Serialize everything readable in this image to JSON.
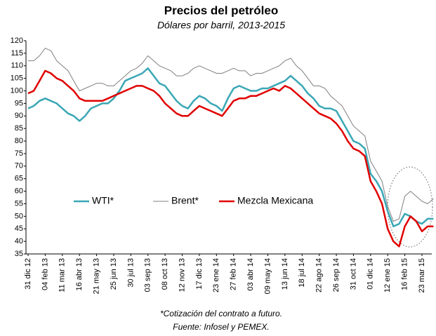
{
  "chart_data": {
    "type": "line",
    "title": "Precios del petróleo",
    "subtitle": "Dólares por barril, 2013-2015",
    "notes": [
      "*Cotización del contrato a futuro.",
      "Fuente: Infosel y PEMEX."
    ],
    "categories": [
      "31 dic 12",
      null,
      null,
      "04 feb 13",
      null,
      null,
      "11 mar 13",
      null,
      null,
      "16 abr 13",
      null,
      null,
      "21 may 13",
      null,
      null,
      "25 jun 13",
      null,
      null,
      "30 jul 13",
      null,
      null,
      "03 sep 13",
      null,
      null,
      "08 oct 13",
      null,
      null,
      "12 nov 13",
      null,
      null,
      "17 dic 13",
      null,
      null,
      "23 ene 14",
      null,
      null,
      "27 feb 14",
      null,
      null,
      "03 abr 14",
      null,
      null,
      "09 may 14",
      null,
      null,
      "13 jun 14",
      null,
      null,
      "18 jul 14",
      null,
      null,
      "22 ago 14",
      null,
      null,
      "26 sep 14",
      null,
      null,
      "31 oct 14",
      null,
      null,
      "01 dic 14",
      null,
      null,
      "12 ene 15",
      null,
      null,
      "16 feb 15",
      null,
      null,
      "23 mar 15",
      null,
      null
    ],
    "series": [
      {
        "name": "WTI*",
        "color": "#3aa7b5",
        "width": 2.5,
        "values": [
          93,
          94,
          96,
          97,
          96,
          95,
          93,
          91,
          90,
          88,
          90,
          93,
          94,
          95,
          95,
          97,
          100,
          104,
          105,
          106,
          107,
          109,
          106,
          103,
          102,
          99,
          96,
          94,
          93,
          96,
          98,
          97,
          95,
          94,
          92,
          97,
          101,
          102,
          101,
          100,
          100,
          101,
          101,
          102,
          103,
          104,
          106,
          104,
          102,
          99,
          97,
          94,
          93,
          93,
          92,
          88,
          84,
          80,
          79,
          77,
          67,
          64,
          60,
          52,
          46,
          47,
          51,
          50,
          48,
          47,
          49,
          49
        ]
      },
      {
        "name": "Brent*",
        "color": "#7f7f7f",
        "width": 1,
        "values": [
          112,
          112,
          114,
          117,
          116,
          112,
          110,
          108,
          104,
          100,
          101,
          102,
          103,
          103,
          102,
          102,
          104,
          106,
          108,
          109,
          111,
          114,
          112,
          110,
          109,
          108,
          106,
          106,
          107,
          109,
          110,
          109,
          108,
          107,
          107,
          108,
          109,
          108,
          108,
          106,
          107,
          107,
          108,
          109,
          110,
          112,
          113,
          110,
          108,
          105,
          102,
          102,
          101,
          98,
          96,
          94,
          90,
          86,
          84,
          82,
          72,
          68,
          64,
          54,
          48,
          49,
          58,
          60,
          58,
          56,
          55,
          57
        ]
      },
      {
        "name": "Mezcla Mexicana",
        "color": "#e00000",
        "width": 2.5,
        "values": [
          99,
          100,
          104,
          108,
          107,
          105,
          104,
          102,
          100,
          97,
          96,
          96,
          96,
          96,
          97,
          98,
          99,
          100,
          101,
          102,
          102,
          101,
          100,
          98,
          95,
          93,
          91,
          90,
          90,
          92,
          94,
          93,
          92,
          91,
          90,
          93,
          96,
          97,
          97,
          98,
          98,
          99,
          100,
          101,
          100,
          102,
          101,
          99,
          97,
          95,
          93,
          91,
          90,
          89,
          87,
          84,
          80,
          77,
          76,
          74,
          64,
          60,
          55,
          45,
          40,
          38,
          46,
          50,
          48,
          44,
          46,
          46
        ]
      }
    ],
    "ylim": [
      35,
      120
    ],
    "yticks": [
      35,
      40,
      45,
      50,
      55,
      60,
      65,
      70,
      75,
      80,
      85,
      90,
      95,
      100,
      105,
      110,
      115,
      120
    ],
    "grid": false,
    "legend": "center"
  }
}
